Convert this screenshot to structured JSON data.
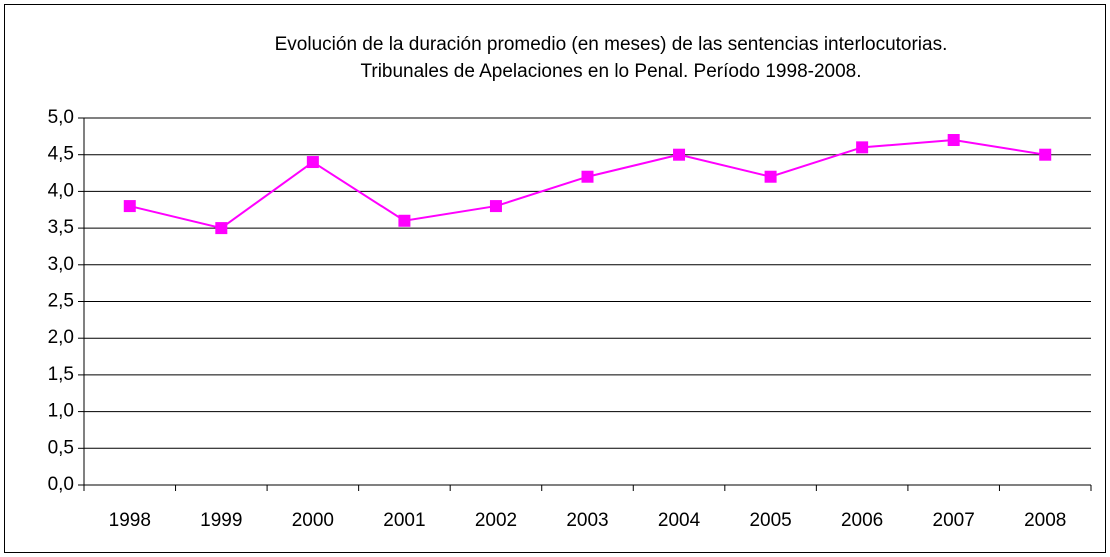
{
  "chart_data": {
    "type": "line",
    "title": [
      "Evolución de la duración promedio (en meses) de las sentencias interlocutorias.",
      "Tribunales de Apelaciones en lo Penal. Período 1998-2008."
    ],
    "categories": [
      "1998",
      "1999",
      "2000",
      "2001",
      "2002",
      "2003",
      "2004",
      "2005",
      "2006",
      "2007",
      "2008"
    ],
    "values": [
      3.8,
      3.5,
      4.4,
      3.6,
      3.8,
      4.2,
      4.5,
      4.2,
      4.6,
      4.7,
      4.5
    ],
    "color": "#ff00ff",
    "ylim": [
      0,
      5
    ],
    "yticks": [
      {
        "value": 0,
        "label": "0,0"
      },
      {
        "value": 0.5,
        "label": "0,5"
      },
      {
        "value": 1,
        "label": "1,0"
      },
      {
        "value": 1.5,
        "label": "1,5"
      },
      {
        "value": 2,
        "label": "2,0"
      },
      {
        "value": 2.5,
        "label": "2,5"
      },
      {
        "value": 3,
        "label": "3,0"
      },
      {
        "value": 3.5,
        "label": "3,5"
      },
      {
        "value": 4,
        "label": "4,0"
      },
      {
        "value": 4.5,
        "label": "4,5"
      },
      {
        "value": 5,
        "label": "5,0"
      }
    ],
    "grid": true
  }
}
